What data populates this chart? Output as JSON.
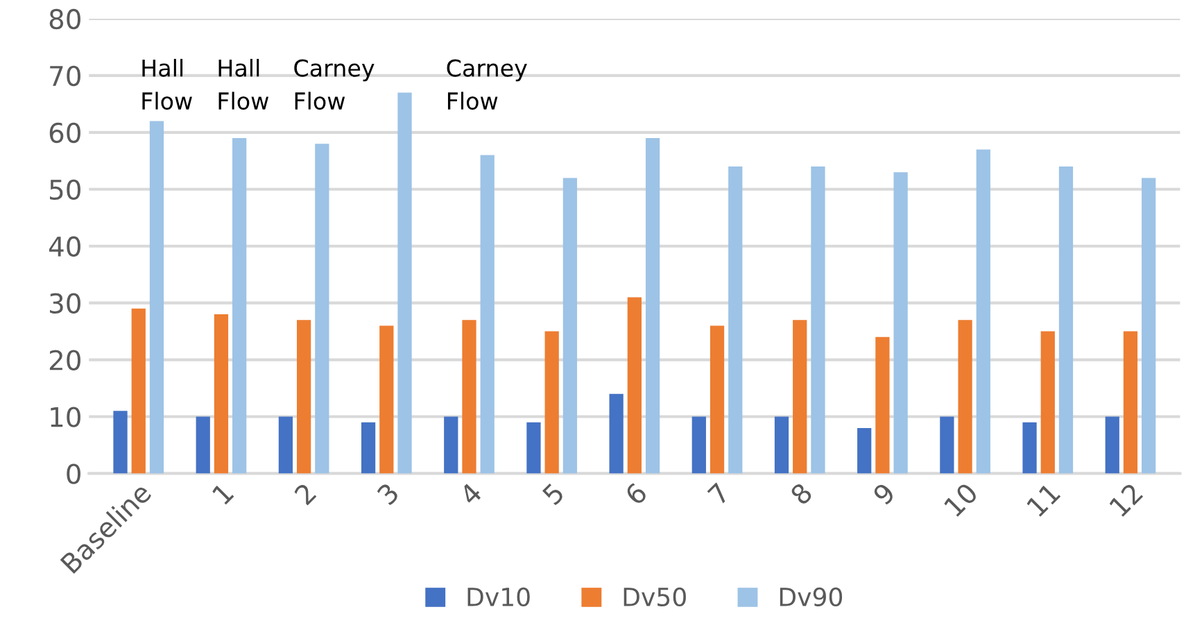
{
  "chart_data": {
    "type": "bar",
    "categories": [
      "Baseline",
      "1",
      "2",
      "3",
      "4",
      "5",
      "6",
      "7",
      "8",
      "9",
      "10",
      "11",
      "12"
    ],
    "series": [
      {
        "name": "Dv10",
        "color": "#4472c4",
        "values": [
          11,
          10,
          10,
          9,
          10,
          9,
          14,
          10,
          10,
          8,
          10,
          9,
          10
        ]
      },
      {
        "name": "Dv50",
        "color": "#ed7d31",
        "values": [
          29,
          28,
          27,
          26,
          27,
          25,
          31,
          26,
          27,
          24,
          27,
          25,
          25
        ]
      },
      {
        "name": "Dv90",
        "color": "#9dc3e6",
        "values": [
          62,
          59,
          58,
          67,
          56,
          52,
          59,
          54,
          54,
          53,
          57,
          54,
          52
        ]
      }
    ],
    "annotations": [
      "Hall\nFlow",
      "Hall\nFlow",
      "Carney\nFlow",
      "Carney\nFlow"
    ],
    "ylim": [
      0,
      80
    ],
    "yticks": [
      0,
      10,
      20,
      30,
      40,
      50,
      60,
      70,
      80
    ],
    "grid": "y",
    "legend": "bottom"
  }
}
